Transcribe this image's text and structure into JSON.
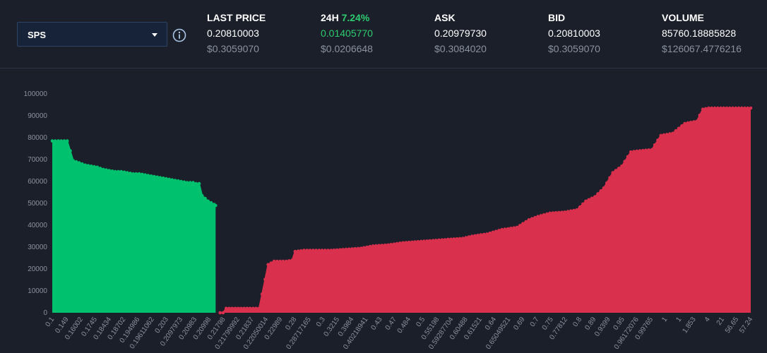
{
  "market": {
    "selected": "SPS"
  },
  "stats": {
    "last_price": {
      "label": "LAST PRICE",
      "value": "0.20810003",
      "usd": "$0.3059070"
    },
    "change_24h": {
      "label": "24H",
      "percent": "7.24%",
      "value": "0.01405770",
      "usd": "$0.0206648"
    },
    "ask": {
      "label": "ASK",
      "value": "0.20979730",
      "usd": "$0.3084020"
    },
    "bid": {
      "label": "BID",
      "value": "0.20810003",
      "usd": "$0.3059070"
    },
    "volume": {
      "label": "VOLUME",
      "value": "85760.18885828",
      "usd": "$126067.4776216"
    }
  },
  "colors": {
    "bid": "#00c26e",
    "ask": "#d9304d",
    "accent_green": "#2ecc71"
  },
  "chart_data": {
    "type": "area",
    "ylim": [
      0,
      100000
    ],
    "yticks": [
      0,
      10000,
      20000,
      30000,
      40000,
      50000,
      60000,
      70000,
      80000,
      90000,
      100000
    ],
    "xticks": [
      "0.1",
      "0.149",
      "0.16002",
      "0.1745",
      "0.18434",
      "0.18702",
      "0.194986",
      "0.19611062",
      "0.203",
      "0.2097973",
      "0.20983",
      "0.20998",
      "0.21798",
      "0.21799992",
      "0.21837",
      "0.22050014",
      "0.22989",
      "0.28",
      "0.28717165",
      "0.3",
      "0.3215",
      "0.3984",
      "0.40218941",
      "0.43",
      "0.47",
      "0.484",
      "0.5",
      "0.55198",
      "0.59287704",
      "0.60488",
      "0.61521",
      "0.64",
      "0.65049521",
      "0.69",
      "0.7",
      "0.75",
      "0.77812",
      "0.8",
      "0.89",
      "0.9399",
      "0.95",
      "0.96172076",
      "0.99765",
      "1",
      "1",
      "1.853",
      "4",
      "21",
      "56.65",
      "57.24"
    ],
    "series": [
      {
        "name": "bids",
        "color": "#00c26e",
        "values": [
          [
            0,
            78500
          ],
          [
            3,
            78500
          ],
          [
            5,
            78500
          ],
          [
            7,
            69500
          ],
          [
            9,
            68500
          ],
          [
            11,
            67500
          ],
          [
            13,
            67000
          ],
          [
            15,
            66500
          ],
          [
            17,
            65500
          ],
          [
            19,
            65000
          ],
          [
            21,
            64500
          ],
          [
            23,
            64500
          ],
          [
            25,
            64000
          ],
          [
            27,
            63500
          ],
          [
            29,
            63500
          ],
          [
            31,
            63000
          ],
          [
            33,
            62500
          ],
          [
            35,
            62000
          ],
          [
            37,
            61500
          ],
          [
            39,
            61000
          ],
          [
            41,
            60500
          ],
          [
            43,
            60000
          ],
          [
            45,
            59500
          ],
          [
            47,
            59500
          ],
          [
            48,
            59000
          ],
          [
            49,
            59000
          ],
          [
            50,
            53500
          ],
          [
            52,
            51000
          ],
          [
            54,
            49500
          ],
          [
            54.5,
            49000
          ]
        ]
      },
      {
        "name": "asks",
        "color": "#d9304d",
        "values": [
          [
            56,
            0
          ],
          [
            57,
            0
          ],
          [
            58,
            2000
          ],
          [
            62,
            2000
          ],
          [
            66,
            2000
          ],
          [
            69,
            2000
          ],
          [
            70,
            8500
          ],
          [
            72,
            22000
          ],
          [
            74,
            23500
          ],
          [
            78,
            23500
          ],
          [
            80,
            24000
          ],
          [
            81,
            28000
          ],
          [
            84,
            28500
          ],
          [
            88,
            28500
          ],
          [
            93,
            28500
          ],
          [
            98,
            29000
          ],
          [
            103,
            29500
          ],
          [
            107,
            30500
          ],
          [
            112,
            31000
          ],
          [
            117,
            32000
          ],
          [
            122,
            32500
          ],
          [
            127,
            33000
          ],
          [
            132,
            33500
          ],
          [
            137,
            34000
          ],
          [
            140,
            35000
          ],
          [
            145,
            36000
          ],
          [
            150,
            38000
          ],
          [
            155,
            39000
          ],
          [
            159,
            42500
          ],
          [
            162,
            44000
          ],
          [
            166,
            45500
          ],
          [
            171,
            46000
          ],
          [
            175,
            47000
          ],
          [
            178,
            51000
          ],
          [
            181,
            53000
          ],
          [
            184,
            57000
          ],
          [
            187,
            64000
          ],
          [
            190,
            67000
          ],
          [
            193,
            73500
          ],
          [
            196,
            74000
          ],
          [
            200,
            74500
          ],
          [
            203,
            81000
          ],
          [
            207,
            82000
          ],
          [
            211,
            86500
          ],
          [
            215,
            87500
          ],
          [
            217,
            93000
          ],
          [
            219,
            93500
          ],
          [
            222,
            93500
          ],
          [
            226,
            93500
          ],
          [
            229,
            93500
          ],
          [
            233,
            93500
          ]
        ]
      }
    ]
  }
}
